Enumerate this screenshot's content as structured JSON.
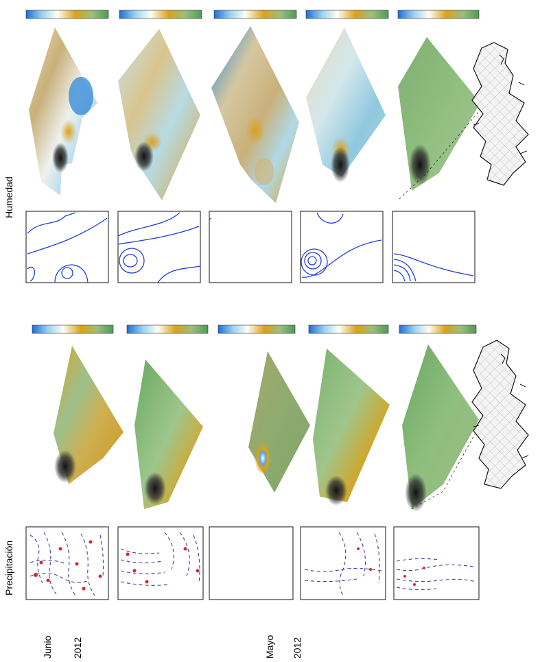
{
  "labels": {
    "precip": "Precipitación",
    "humedad": "Humedad",
    "month_top": "Junio",
    "year_top": "2012",
    "month_bottom": "Mayo",
    "year_bottom": "2012"
  },
  "colors": {
    "blue": "#2a7fd4",
    "light_blue": "#9fd3ef",
    "white": "#fdfdf5",
    "tan": "#c9b07a",
    "gold": "#d9a21b",
    "green": "#6aa862",
    "dark": "#1a1a1a",
    "contour_blue": "#1f3fd6",
    "vector_red": "#e0232a",
    "vector_blue": "#3d3da8"
  }
}
